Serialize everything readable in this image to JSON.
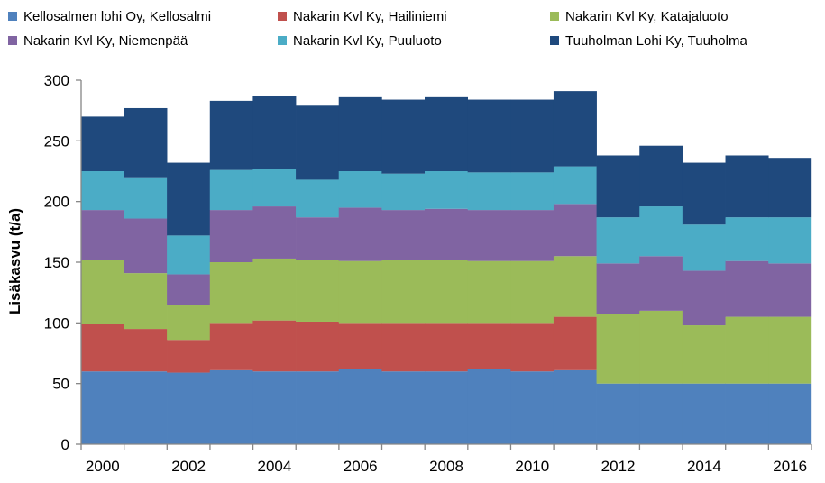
{
  "chart_data": {
    "type": "bar",
    "stacked": true,
    "title": "",
    "xlabel": "",
    "ylabel": "Lisäkasvu (t/a)",
    "ylim": [
      0,
      300
    ],
    "yticks": [
      "0",
      "50",
      "100",
      "150",
      "200",
      "250",
      "300"
    ],
    "categories": [
      "2000",
      "2001",
      "2002",
      "2003",
      "2004",
      "2005",
      "2006",
      "2007",
      "2008",
      "2009",
      "2010",
      "2011",
      "2012",
      "2013",
      "2014",
      "2015",
      "2016"
    ],
    "xtick_labels": [
      "2000",
      "",
      "2002",
      "",
      "2004",
      "",
      "2006",
      "",
      "2008",
      "",
      "2010",
      "",
      "2012",
      "",
      "2014",
      "",
      "2016"
    ],
    "legend_position": "top",
    "gridlines": false,
    "series": [
      {
        "name": "Kellosalmen lohi Oy, Kellosalmi",
        "color": "#4F81BD",
        "values": [
          60,
          60,
          59,
          61,
          60,
          60,
          62,
          60,
          60,
          62,
          60,
          61,
          50,
          50,
          50,
          50,
          50
        ]
      },
      {
        "name": "Nakarin Kvl Ky, Hailiniemi",
        "color": "#C0504D",
        "values": [
          39,
          35,
          27,
          39,
          42,
          41,
          38,
          40,
          40,
          38,
          40,
          44,
          0,
          0,
          0,
          0,
          0
        ]
      },
      {
        "name": "Nakarin Kvl Ky, Katajaluoto",
        "color": "#9BBB59",
        "values": [
          53,
          46,
          29,
          50,
          51,
          51,
          51,
          52,
          52,
          51,
          51,
          50,
          57,
          60,
          48,
          55,
          55
        ]
      },
      {
        "name": "Nakarin Kvl Ky, Niemenpää",
        "color": "#8064A2",
        "values": [
          41,
          45,
          25,
          43,
          43,
          35,
          44,
          41,
          42,
          42,
          42,
          43,
          42,
          45,
          45,
          46,
          44
        ]
      },
      {
        "name": "Nakarin Kvl Ky, Puuluoto",
        "color": "#4BACC6",
        "values": [
          32,
          34,
          32,
          33,
          31,
          31,
          30,
          30,
          31,
          31,
          31,
          31,
          38,
          41,
          38,
          36,
          38
        ]
      },
      {
        "name": "Tuuholman Lohi Ky, Tuuholma",
        "color": "#1F497D",
        "values": [
          45,
          57,
          60,
          57,
          60,
          61,
          61,
          61,
          61,
          60,
          60,
          62,
          51,
          50,
          51,
          51,
          49
        ]
      }
    ]
  }
}
